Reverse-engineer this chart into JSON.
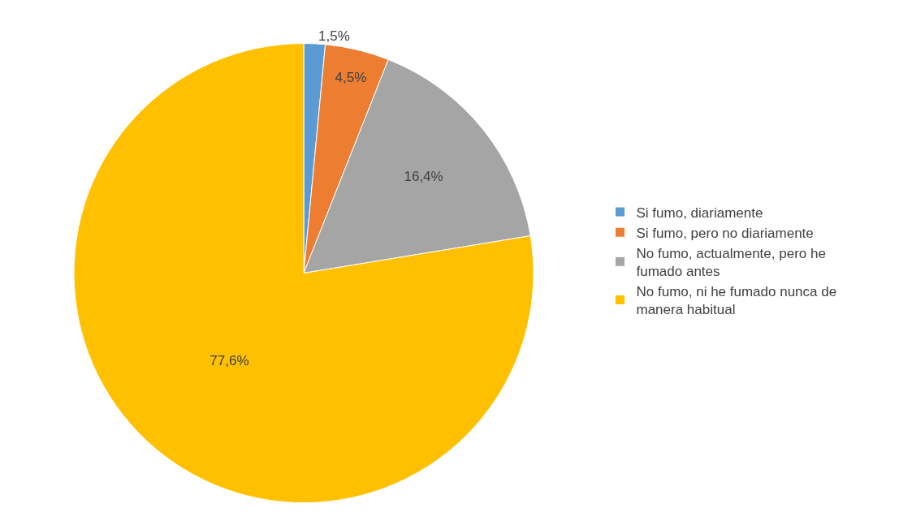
{
  "chart_data": {
    "type": "pie",
    "categories": [
      "Si fumo, diariamente",
      "Si fumo, pero no diariamente",
      "No fumo, actualmente, pero he fumado antes",
      "No fumo, ni he fumado nunca de manera habitual"
    ],
    "values": [
      1.5,
      4.5,
      16.4,
      77.6
    ],
    "value_labels": [
      "1,5%",
      "4,5%",
      "16,4%",
      "77,6%"
    ],
    "colors": [
      "#5b9bd5",
      "#ed7d31",
      "#a5a5a5",
      "#ffc000"
    ],
    "legend": "right"
  }
}
